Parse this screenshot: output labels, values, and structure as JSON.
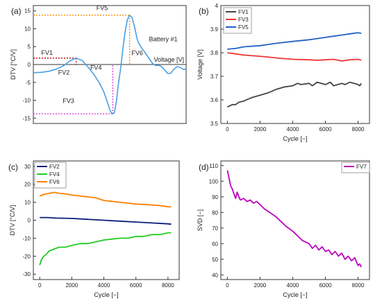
{
  "chart_data": [
    {
      "id": "a",
      "type": "line",
      "panel_label": "(a)",
      "ylabel": "DTV [°C/V]",
      "xlabel": "Voltage [V]",
      "annotation": "Battery #1",
      "yticks": [
        15,
        10,
        5,
        0,
        -5,
        -10,
        -15
      ],
      "ylim": [
        -16.5,
        16.5
      ],
      "curve": {
        "color": "#4a9fe0",
        "x": [
          0,
          0.05,
          0.1,
          0.15,
          0.2,
          0.24,
          0.28,
          0.32,
          0.36,
          0.4,
          0.43,
          0.46,
          0.48,
          0.5,
          0.51,
          0.52,
          0.53,
          0.545,
          0.555,
          0.57,
          0.585,
          0.6,
          0.615,
          0.63,
          0.645,
          0.66,
          0.67,
          0.68,
          0.69,
          0.7,
          0.72,
          0.74,
          0.76,
          0.78,
          0.8,
          0.82,
          0.84,
          0.86,
          0.88,
          0.9,
          0.92,
          0.94,
          0.96,
          0.98,
          1.0
        ],
        "y": [
          -2.3,
          -2.2,
          -1.9,
          -1.3,
          -0.3,
          1.0,
          1.8,
          1.1,
          -0.8,
          -3.0,
          -5.0,
          -7.5,
          -10.0,
          -12.5,
          -13.5,
          -13.8,
          -13.5,
          -10.0,
          -6.0,
          -1.5,
          4.0,
          9.0,
          12.5,
          13.8,
          13.2,
          11.0,
          9.0,
          7.0,
          6.0,
          5.2,
          4.0,
          2.8,
          1.5,
          0.3,
          -0.3,
          -0.2,
          -0.6,
          -1.6,
          -2.5,
          -2.4,
          -1.3,
          -0.6,
          -0.8,
          -1.3,
          -1.4
        ]
      },
      "markers": [
        {
          "label": "FV5",
          "color": "#ff8c00",
          "value": 13.8,
          "x": 0.63
        },
        {
          "label": "FV1",
          "color": "#c00000",
          "value": 1.8,
          "x": 0.28
        },
        {
          "label": "FV3",
          "color": "#e040e0",
          "value": -13.8,
          "x": 0.52
        }
      ],
      "point_labels": [
        "FV2",
        "FV4",
        "FV6"
      ]
    },
    {
      "id": "b",
      "type": "line",
      "panel_label": "(b)",
      "xlabel": "Cycle [−]",
      "ylabel": "Voltage [V]",
      "xlim": [
        -400,
        8700
      ],
      "ylim": [
        3.5,
        4.0
      ],
      "xticks": [
        0,
        2000,
        4000,
        6000,
        8000
      ],
      "yticks": [
        3.5,
        3.6,
        3.7,
        3.8,
        3.9,
        4.0
      ],
      "legend_position": "top-left",
      "series": [
        {
          "name": "FV1",
          "color": "#444444",
          "x": [
            0,
            300,
            500,
            700,
            1000,
            1500,
            2000,
            2500,
            3000,
            3500,
            4000,
            4300,
            4500,
            5000,
            5200,
            5500,
            6000,
            6300,
            6500,
            7000,
            7200,
            7500,
            8000,
            8100,
            8200
          ],
          "values": [
            3.57,
            3.58,
            3.58,
            3.59,
            3.595,
            3.61,
            3.62,
            3.63,
            3.645,
            3.655,
            3.66,
            3.67,
            3.665,
            3.67,
            3.66,
            3.675,
            3.665,
            3.675,
            3.66,
            3.67,
            3.665,
            3.675,
            3.665,
            3.66,
            3.67
          ]
        },
        {
          "name": "FV3",
          "color": "#ee3333",
          "x": [
            0,
            500,
            1000,
            2000,
            3000,
            4000,
            5000,
            5500,
            6000,
            6500,
            7000,
            7500,
            8000,
            8200
          ],
          "values": [
            3.8,
            3.795,
            3.79,
            3.785,
            3.778,
            3.772,
            3.77,
            3.768,
            3.77,
            3.772,
            3.765,
            3.77,
            3.772,
            3.768
          ]
        },
        {
          "name": "FV5",
          "color": "#1f62c7",
          "x": [
            0,
            500,
            1000,
            2000,
            3000,
            4000,
            5000,
            5500,
            6000,
            6500,
            7000,
            7500,
            8000,
            8200
          ],
          "values": [
            3.815,
            3.818,
            3.825,
            3.83,
            3.84,
            3.848,
            3.855,
            3.86,
            3.865,
            3.87,
            3.875,
            3.88,
            3.885,
            3.882
          ]
        }
      ]
    },
    {
      "id": "c",
      "type": "line",
      "panel_label": "(c)",
      "xlabel": "Cycle [−]",
      "ylabel": "DTV [°C/V]",
      "xlim": [
        -400,
        8700
      ],
      "ylim": [
        -33,
        33
      ],
      "xticks": [
        0,
        2000,
        4000,
        6000,
        8000
      ],
      "yticks": [
        30,
        20,
        10,
        0,
        -10,
        -20,
        -30
      ],
      "legend_position": "top-left",
      "series": [
        {
          "name": "FV2",
          "color": "#0a1a7a",
          "x": [
            0,
            500,
            1000,
            2000,
            3000,
            4000,
            5000,
            6000,
            7000,
            8000,
            8200
          ],
          "values": [
            1.5,
            1.5,
            1.2,
            1.0,
            0.5,
            0.0,
            -0.5,
            -1.0,
            -1.5,
            -2.0,
            -2.2
          ]
        },
        {
          "name": "FV4",
          "color": "#22cc22",
          "x": [
            0,
            100,
            250,
            400,
            600,
            900,
            1200,
            1600,
            2000,
            2500,
            3000,
            3500,
            4000,
            4500,
            5000,
            5500,
            6000,
            6500,
            7000,
            7500,
            8000,
            8200
          ],
          "values": [
            -25,
            -22,
            -20,
            -19,
            -17,
            -16,
            -15,
            -15,
            -14,
            -13,
            -13,
            -12,
            -11,
            -10.5,
            -10,
            -10,
            -9,
            -9,
            -8,
            -8,
            -7,
            -7
          ]
        },
        {
          "name": "FV6",
          "color": "#ff7f00",
          "x": [
            0,
            300,
            600,
            900,
            1200,
            1500,
            2000,
            2500,
            3000,
            3500,
            4000,
            4500,
            5000,
            5500,
            6000,
            6500,
            7000,
            7500,
            8000,
            8200
          ],
          "values": [
            13.5,
            14.5,
            15,
            15.5,
            15,
            14.8,
            14,
            13.5,
            13,
            12.5,
            11,
            10.5,
            10,
            9.5,
            9,
            8.8,
            8.5,
            8.2,
            7.5,
            7.5
          ]
        }
      ]
    },
    {
      "id": "d",
      "type": "line",
      "panel_label": "(d)",
      "xlabel": "Cycle [−]",
      "ylabel": "SVD [−]",
      "xlim": [
        -400,
        8700
      ],
      "ylim": [
        37,
        113
      ],
      "xticks": [
        0,
        2000,
        4000,
        6000,
        8000
      ],
      "yticks": [
        110,
        100,
        90,
        80,
        70,
        60,
        50,
        40
      ],
      "legend_position": "top-right",
      "series": [
        {
          "name": "FV7",
          "color": "#bb00bb",
          "x": [
            0,
            100,
            200,
            300,
            400,
            500,
            600,
            700,
            800,
            1000,
            1200,
            1400,
            1600,
            1800,
            2000,
            2300,
            2600,
            3000,
            3300,
            3600,
            4000,
            4300,
            4600,
            5000,
            5200,
            5400,
            5600,
            5800,
            6000,
            6200,
            6400,
            6600,
            6800,
            7000,
            7200,
            7400,
            7600,
            7800,
            8000,
            8100,
            8200
          ],
          "values": [
            107,
            102,
            97,
            95,
            92,
            89,
            93,
            90,
            88,
            89,
            87,
            88,
            86,
            87,
            85,
            82,
            80,
            77,
            74,
            71,
            68,
            65,
            62,
            60,
            57,
            59,
            56,
            58,
            55,
            56,
            53,
            55,
            52,
            54,
            50,
            52,
            49,
            51,
            46,
            47,
            45
          ]
        }
      ]
    }
  ]
}
